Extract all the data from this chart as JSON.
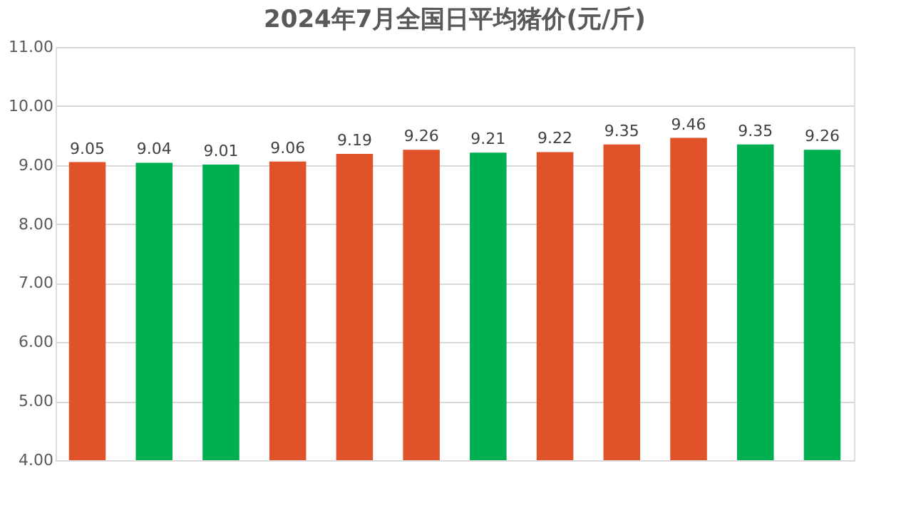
{
  "chart_data": {
    "type": "bar",
    "title": "2024年7月全国日平均猪价(元/斤)",
    "categories": [
      null,
      null,
      null,
      null,
      null,
      null,
      null,
      null,
      null,
      null,
      null,
      null
    ],
    "values": [
      9.05,
      9.04,
      9.01,
      9.06,
      9.19,
      9.26,
      9.21,
      9.22,
      9.35,
      9.46,
      9.35,
      9.26
    ],
    "colors": [
      "#e0532a",
      "#00b050",
      "#00b050",
      "#e0532a",
      "#e0532a",
      "#e0532a",
      "#00b050",
      "#e0532a",
      "#e0532a",
      "#e0532a",
      "#00b050",
      "#00b050"
    ],
    "ylim": [
      4,
      11
    ],
    "yticks": [
      {
        "value": 4,
        "label": "4.00"
      },
      {
        "value": 5,
        "label": "5.00"
      },
      {
        "value": 6,
        "label": "6.00"
      },
      {
        "value": 7,
        "label": "7.00"
      },
      {
        "value": 8,
        "label": "8.00"
      },
      {
        "value": 9,
        "label": "9.00"
      },
      {
        "value": 10,
        "label": "10.00"
      },
      {
        "value": 11,
        "label": "11.00"
      }
    ],
    "grid": "y",
    "data_labels": true,
    "tick_labels": "y"
  }
}
